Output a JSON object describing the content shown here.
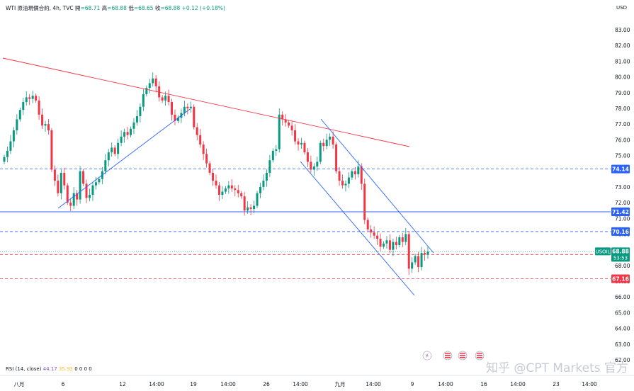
{
  "header": {
    "symbol": "WTI 原油現價合約, 4h, TVC",
    "open_label": "開",
    "open": "=68.71",
    "high_label": "高",
    "high": "=68.88",
    "low_label": "低",
    "low": "=68.65",
    "close_label": "收",
    "close": "=68.88",
    "change": "+0.12 (+0.18%)",
    "currency": "USD"
  },
  "rsi": {
    "label": "RSI (14, close)",
    "value1": "44.17",
    "value2": "35.93",
    "others": "0 0 0 0"
  },
  "watermark": "知乎 @CPT Markets 官方",
  "colors": {
    "up": "#089981",
    "down": "#f23645",
    "trend_red": "#f23645",
    "trend_blue": "#2962ff"
  },
  "chart_data": {
    "type": "candlestick",
    "timeframe": "4h",
    "ylim": [
      62,
      84
    ],
    "y_ticks": [
      "83.00",
      "82.00",
      "81.00",
      "80.00",
      "79.00",
      "78.00",
      "77.00",
      "76.00",
      "75.00",
      "74.00",
      "73.00",
      "72.00",
      "71.00",
      "70.00",
      "69.00",
      "68.00",
      "67.00",
      "66.00",
      "65.00",
      "64.00",
      "63.00",
      "62.00"
    ],
    "x_ticks": [
      "八月",
      "6",
      "12",
      "14:00",
      "19",
      "14:00",
      "26",
      "14:00",
      "九月",
      "14:00",
      "9",
      "14:00",
      "16",
      "14:00",
      "23",
      "14:00"
    ],
    "levels": [
      {
        "value": 74.14,
        "label": "74.14",
        "style": "dashed",
        "color": "#2962ff"
      },
      {
        "value": 71.42,
        "label": "71.42",
        "style": "solid",
        "color": "#2962ff"
      },
      {
        "value": 70.16,
        "label": "70.16",
        "style": "dashed",
        "color": "#2962ff"
      },
      {
        "value": 68.7,
        "label": "68.70",
        "style": "dashed",
        "color": "#f23645"
      },
      {
        "value": 67.16,
        "label": "67.16",
        "style": "dashed",
        "color": "#f23645"
      }
    ],
    "current": {
      "label": "USOIL",
      "price": "68.88",
      "countdown": "53:53"
    },
    "closes": [
      74.9,
      75.3,
      75.9,
      76.6,
      77.3,
      77.9,
      78.4,
      78.7,
      78.6,
      78.8,
      78.5,
      77.6,
      76.9,
      77.0,
      76.6,
      74.1,
      73.4,
      72.6,
      73.9,
      73.1,
      72.0,
      71.8,
      72.6,
      72.2,
      74.0,
      73.2,
      72.3,
      72.5,
      73.1,
      73.3,
      73.5,
      74.0,
      74.7,
      75.2,
      75.5,
      75.1,
      75.8,
      76.2,
      76.5,
      76.3,
      76.7,
      77.1,
      77.5,
      78.1,
      78.9,
      79.3,
      79.6,
      79.9,
      79.4,
      78.7,
      78.5,
      78.8,
      78.4,
      77.6,
      77.2,
      77.4,
      77.7,
      78.1,
      78.0,
      78.1
    ],
    "closes_b": [
      76.8,
      76.3,
      75.7,
      75.1,
      74.5,
      73.9,
      73.4,
      73.1,
      72.5,
      72.7,
      72.9,
      73.1,
      72.9,
      72.8,
      72.6,
      72.4,
      71.5,
      71.7,
      71.6,
      71.8,
      72.6,
      73.0,
      73.4,
      73.9,
      74.7,
      75.3,
      75.4,
      77.6,
      77.3,
      77.1,
      76.9,
      76.6,
      75.9,
      75.7,
      75.8,
      75.2,
      74.6,
      74.1,
      74.3,
      74.6,
      75.8,
      75.6,
      76.0,
      76.2,
      75.7,
      74.0,
      73.4,
      73.1,
      73.2,
      73.6,
      74.0,
      73.8,
      74.3,
      73.2,
      70.9,
      70.3,
      70.1,
      69.9,
      69.7,
      69.2,
      69.4,
      69.6,
      69.0,
      69.5,
      69.3,
      69.8,
      69.5,
      70.0,
      67.8,
      68.2,
      68.6,
      67.9,
      68.8,
      68.7,
      68.88
    ]
  }
}
